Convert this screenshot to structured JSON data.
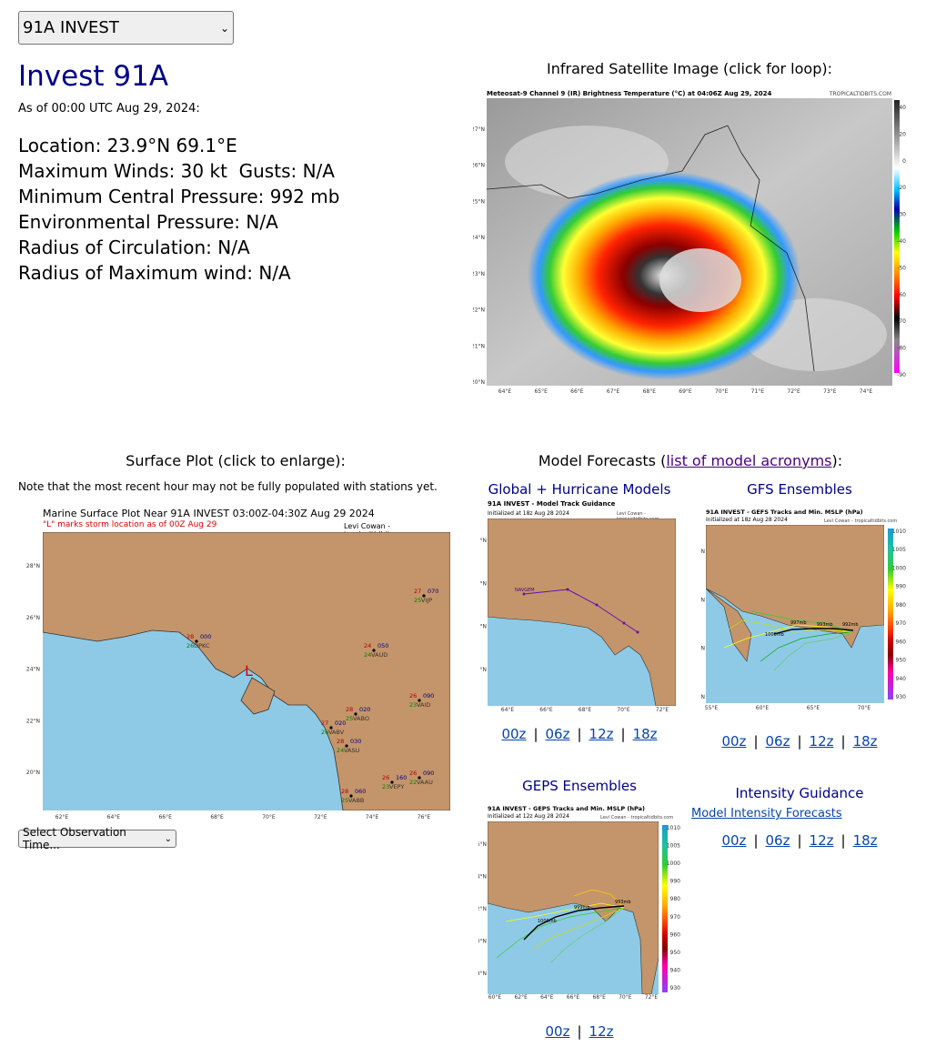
{
  "storm_select": {
    "value": "91A INVEST"
  },
  "storm": {
    "title": "Invest 91A",
    "as_of": "As of 00:00 UTC Aug 29, 2024:",
    "lines": [
      "Location: 23.9°N 69.1°E",
      "Maximum Winds: 30 kt  Gusts: N/A",
      "Minimum Central Pressure: 992 mb",
      "Environmental Pressure: N/A",
      "Radius of Circulation: N/A",
      "Radius of Maximum wind: N/A"
    ]
  },
  "satellite": {
    "caption": "Infrared Satellite Image (click for loop):",
    "image_title": "Meteosat-9 Channel 9 (IR) Brightness Temperature (°C) at 04:06Z Aug 29, 2024",
    "credit": "TROPICALTIDBITS.COM",
    "lat_ticks": [
      "27°N",
      "26°N",
      "25°N",
      "24°N",
      "23°N",
      "22°N",
      "21°N",
      "20°N"
    ],
    "lon_ticks": [
      "64°E",
      "65°E",
      "66°E",
      "67°E",
      "68°E",
      "69°E",
      "70°E",
      "71°E",
      "72°E",
      "73°E",
      "74°E"
    ],
    "scale_ticks": [
      "40",
      "20",
      "0",
      "-20",
      "-30",
      "-40",
      "-50",
      "-60",
      "-70",
      "-80",
      "-90"
    ]
  },
  "surface": {
    "caption": "Surface Plot (click to enlarge):",
    "note": "Note that the most recent hour may not be fully populated with stations yet.",
    "image_title": "Marine Surface Plot Near 91A INVEST 03:00Z-04:30Z Aug 29 2024",
    "image_subtitle": "\"L\" marks storm location as of 00Z Aug 29",
    "credit": "Levi Cowan - tropicaltidbits.com",
    "storm_marker": "L",
    "lat_ticks": [
      "28°N",
      "26°N",
      "24°N",
      "22°N",
      "20°N"
    ],
    "lon_ticks": [
      "62°E",
      "64°E",
      "66°E",
      "68°E",
      "70°E",
      "72°E",
      "74°E",
      "76°E"
    ],
    "stations": [
      {
        "t": "28",
        "d": "26",
        "p": "000",
        "id": "OPKC"
      },
      {
        "t": "24",
        "d": "24",
        "p": "050",
        "id": "VAUD"
      },
      {
        "t": "27",
        "d": "25",
        "p": "070",
        "id": "VIJP"
      },
      {
        "t": "26",
        "d": "23",
        "p": "090",
        "id": "VAID"
      },
      {
        "t": "28",
        "d": "25",
        "p": "020",
        "id": "VABO"
      },
      {
        "t": "27",
        "d": "26",
        "p": "020",
        "id": "VABV"
      },
      {
        "t": "28",
        "d": "24",
        "p": "030",
        "id": "VASU"
      },
      {
        "t": "26",
        "d": "23",
        "p": "160",
        "id": "VEPY"
      },
      {
        "t": "26",
        "d": "22",
        "p": "090",
        "id": "VAAU"
      },
      {
        "t": "28",
        "d": "25",
        "p": "060",
        "id": "VABB"
      }
    ],
    "obs_select": "Select Observation Time..."
  },
  "models": {
    "caption_prefix": "Model Forecasts (",
    "caption_link": "list of model acronyms",
    "caption_suffix": "):",
    "global": {
      "label": "Global + Hurricane Models",
      "image_title": "91A INVEST - Model Track Guidance",
      "image_subtitle": "Initialized at 18z Aug 28 2024",
      "credit": "Levi Cowan - tropicaltidbits.com",
      "model_name": "NAVGEM",
      "lat_ticks": [
        "28°N",
        "26°N",
        "24°N",
        "22°N"
      ],
      "lon_ticks": [
        "64°E",
        "66°E",
        "68°E",
        "70°E",
        "72°E"
      ],
      "runs": [
        "00z",
        "06z",
        "12z",
        "18z"
      ]
    },
    "gfs": {
      "label": "GFS Ensembles",
      "image_title": "91A INVEST - GEFS Tracks and Min. MSLP (hPa)",
      "image_subtitle": "Initialized at 18z Aug 28 2024",
      "credit": "Levi Cowan - tropicaltidbits.com",
      "mslp_labels": [
        "1000mb",
        "997mb",
        "993mb",
        "992mb"
      ],
      "lat_ticks": [
        "30°N",
        "25°N",
        "20°N",
        "15°N"
      ],
      "lon_ticks": [
        "55°E",
        "60°E",
        "65°E",
        "70°E"
      ],
      "scale_ticks": [
        "1010",
        "1005",
        "1000",
        "990",
        "980",
        "970",
        "960",
        "950",
        "940",
        "930"
      ],
      "runs": [
        "00z",
        "06z",
        "12z",
        "18z"
      ]
    },
    "geps": {
      "label": "GEPS Ensembles",
      "image_title": "91A INVEST - GEPS Tracks and Min. MSLP (hPa)",
      "image_subtitle": "Initialized at 12z Aug 28 2024",
      "credit": "Levi Cowan - tropicaltidbits.com",
      "mslp_labels": [
        "1000mb",
        "999mb",
        "993mb"
      ],
      "lat_ticks": [
        "26°N",
        "24°N",
        "22°N",
        "20°N",
        "18°N"
      ],
      "lon_ticks": [
        "60°E",
        "62°E",
        "64°E",
        "66°E",
        "68°E",
        "70°E",
        "72°E"
      ],
      "scale_ticks": [
        "1010",
        "1005",
        "1000",
        "990",
        "980",
        "970",
        "960",
        "950",
        "940",
        "930"
      ],
      "runs": [
        "00z",
        "12z"
      ]
    },
    "intensity": {
      "label": "Intensity Guidance",
      "link": "Model Intensity Forecasts",
      "runs": [
        "00z",
        "06z",
        "12z",
        "18z"
      ]
    }
  },
  "colors": {
    "title": "#00008b",
    "land": "#c4956a",
    "ocean": "#8ecae6",
    "link": "#0645ad"
  }
}
